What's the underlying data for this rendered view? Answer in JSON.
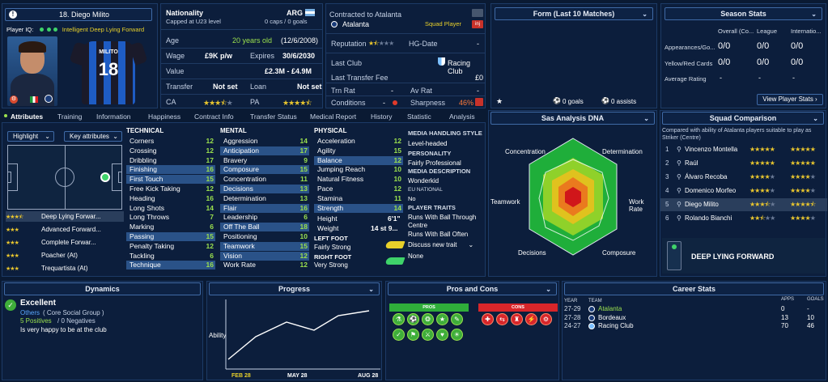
{
  "player": {
    "number_name": "18. Diego Milito",
    "player_iq_label": "Player IQ:",
    "role": "Intelligent Deep Lying Forward",
    "shirt_name": "MILITO",
    "shirt_number": "18"
  },
  "info": {
    "nationality_label": "Nationality",
    "nationality_value": "ARG",
    "capped": "Capped at U23 level",
    "caps": "0 caps / 0 goals",
    "age_label": "Age",
    "age_value": "20 years old",
    "dob": "(12/6/2008)",
    "wage_label": "Wage",
    "wage_value": "£9K p/w",
    "expires_label": "Expires",
    "expires_value": "30/6/2030",
    "value_label": "Value",
    "value_value": "£2.3M - £4.9M",
    "transfer_label": "Transfer",
    "transfer_value": "Not set",
    "loan_label": "Loan",
    "loan_value": "Not set",
    "ca_label": "CA",
    "pa_label": "PA",
    "ca_stars": 3.5,
    "pa_stars": 4.5
  },
  "contract": {
    "contracted_to": "Contracted to Atalanta",
    "club": "Atalanta",
    "status": "Squad Player",
    "reputation_label": "Reputation",
    "hg_label": "HG-Date",
    "hg_value": "-",
    "last_club_label": "Last Club",
    "last_club_value": "Racing Club",
    "last_fee_label": "Last Transfer Fee",
    "last_fee_value": "£0",
    "trn_rat_label": "Trn Rat",
    "trn_rat_value": "-",
    "av_rat_label": "Av Rat",
    "av_rat_value": "-",
    "conditions_label": "Conditions",
    "conditions_value": "-",
    "sharpness_label": "Sharpness",
    "sharpness_value": "46%",
    "rep_stars": 1.5
  },
  "form": {
    "title": "Form (Last 10 Matches)",
    "goals": "0 goals",
    "assists": "0 assists"
  },
  "season": {
    "title": "Season Stats",
    "columns": [
      "Overall (Co...",
      "League",
      "Internatio..."
    ],
    "rows": [
      {
        "label": "Appearances/Go...",
        "values": [
          "0/0",
          "0/0",
          "0/0"
        ]
      },
      {
        "label": "Yellow/Red Cards",
        "values": [
          "0/0",
          "0/0",
          "0/0"
        ]
      },
      {
        "label": "Average Rating",
        "values": [
          "-",
          "-",
          "-"
        ]
      }
    ],
    "button": "View Player Stats"
  },
  "tabs": [
    "Attributes",
    "Training",
    "Information",
    "Happiness",
    "Contract Info",
    "Transfer Status",
    "Medical Report",
    "History",
    "Statistic",
    "Analysis"
  ],
  "attributes": {
    "highlight": "Highlight",
    "key_attributes": "Key attributes",
    "technical_title": "TECHNICAL",
    "technical": [
      {
        "name": "Corners",
        "value": "12",
        "hl": false
      },
      {
        "name": "Crossing",
        "value": "12",
        "hl": false
      },
      {
        "name": "Dribbling",
        "value": "17",
        "hl": false
      },
      {
        "name": "Finishing",
        "value": "16",
        "hl": true
      },
      {
        "name": "First Touch",
        "value": "15",
        "hl": true
      },
      {
        "name": "Free Kick Taking",
        "value": "12",
        "hl": false
      },
      {
        "name": "Heading",
        "value": "16",
        "hl": false
      },
      {
        "name": "Long Shots",
        "value": "14",
        "hl": false
      },
      {
        "name": "Long Throws",
        "value": "7",
        "hl": false
      },
      {
        "name": "Marking",
        "value": "6",
        "hl": false
      },
      {
        "name": "Passing",
        "value": "15",
        "hl": true
      },
      {
        "name": "Penalty Taking",
        "value": "12",
        "hl": false
      },
      {
        "name": "Tackling",
        "value": "6",
        "hl": false
      },
      {
        "name": "Technique",
        "value": "16",
        "hl": true
      }
    ],
    "mental_title": "MENTAL",
    "mental": [
      {
        "name": "Aggression",
        "value": "14",
        "hl": false
      },
      {
        "name": "Anticipation",
        "value": "17",
        "hl": true
      },
      {
        "name": "Bravery",
        "value": "9",
        "hl": false
      },
      {
        "name": "Composure",
        "value": "15",
        "hl": true
      },
      {
        "name": "Concentration",
        "value": "11",
        "hl": false
      },
      {
        "name": "Decisions",
        "value": "13",
        "hl": true
      },
      {
        "name": "Determination",
        "value": "13",
        "hl": false
      },
      {
        "name": "Flair",
        "value": "16",
        "hl": true
      },
      {
        "name": "Leadership",
        "value": "6",
        "hl": false
      },
      {
        "name": "Off The Ball",
        "value": "18",
        "hl": true
      },
      {
        "name": "Positioning",
        "value": "10",
        "hl": false
      },
      {
        "name": "Teamwork",
        "value": "15",
        "hl": true
      },
      {
        "name": "Vision",
        "value": "12",
        "hl": true
      },
      {
        "name": "Work Rate",
        "value": "12",
        "hl": false
      }
    ],
    "physical_title": "PHYSICAL",
    "physical": [
      {
        "name": "Acceleration",
        "value": "12",
        "hl": false
      },
      {
        "name": "Agility",
        "value": "15",
        "hl": false
      },
      {
        "name": "Balance",
        "value": "12",
        "hl": true
      },
      {
        "name": "Jumping Reach",
        "value": "10",
        "hl": false
      },
      {
        "name": "Natural Fitness",
        "value": "10",
        "hl": false
      },
      {
        "name": "Pace",
        "value": "12",
        "hl": false
      },
      {
        "name": "Stamina",
        "value": "11",
        "hl": false
      },
      {
        "name": "Strength",
        "value": "14",
        "hl": true
      }
    ],
    "height_label": "Height",
    "height_value": "6'1\"",
    "weight_label": "Weight",
    "weight_value": "14 st 9...",
    "left_foot_label": "LEFT FOOT",
    "left_foot_value": "Fairly Strong",
    "right_foot_label": "RIGHT FOOT",
    "right_foot_value": "Very Strong"
  },
  "media": {
    "handling_title": "MEDIA HANDLING STYLE",
    "handling_value": "Level-headed",
    "personality_title": "PERSONALITY",
    "personality_value": "Fairly Professional",
    "description_title": "MEDIA DESCRIPTION",
    "description_value": "Wonderkid",
    "eu_title": "EU NATIONAL",
    "eu_value": "No",
    "traits_title": "PLAYER TRAITS",
    "traits": [
      "Runs With Ball Through Centre",
      "Runs With Ball Often",
      "Discuss new trait",
      "None"
    ]
  },
  "roles": [
    {
      "stars": 3.5,
      "name": "Deep Lying Forwar...",
      "active": true
    },
    {
      "stars": 3,
      "name": "Advanced Forward...",
      "active": false
    },
    {
      "stars": 3,
      "name": "Complete Forwar...",
      "active": false
    },
    {
      "stars": 3,
      "name": "Poacher (At)",
      "active": false
    },
    {
      "stars": 3,
      "name": "Trequartista (At)",
      "active": false
    }
  ],
  "dna": {
    "title": "Sas Analysis DNA",
    "labels": {
      "top_left": "Concentration",
      "top_right": "Determination",
      "left": "Teamwork",
      "right": "Work Rate",
      "bottom_left": "Decisions",
      "bottom_right": "Composure"
    }
  },
  "squad": {
    "title": "Squad Comparison",
    "subtitle": "Compared with ability of Atalanta players suitable to play as Striker (Centre)",
    "players": [
      {
        "rank": "1",
        "name": "Vincenzo Montella",
        "ca": 5,
        "pa": 5
      },
      {
        "rank": "2",
        "name": "Raúl",
        "ca": 5,
        "pa": 5
      },
      {
        "rank": "3",
        "name": "Álvaro Recoba",
        "ca": 4,
        "pa": 4
      },
      {
        "rank": "4",
        "name": "Domenico Morfeo",
        "ca": 4,
        "pa": 4
      },
      {
        "rank": "5",
        "name": "Diego Milito",
        "ca": 3.5,
        "pa": 4.5
      },
      {
        "rank": "6",
        "name": "Rolando Bianchi",
        "ca": 2.5,
        "pa": 4
      }
    ],
    "role_name": "DEEP LYING FORWARD"
  },
  "dynamics": {
    "title": "Dynamics",
    "status": "Excellent",
    "group_prefix": "Others",
    "group": "( Core Social Group )",
    "positives": "5 Positives",
    "negatives": "/ 0 Negatives",
    "note": "Is very happy to be at the club"
  },
  "progress": {
    "title": "Progress",
    "ylabel": "Ability",
    "ticks": [
      "FEB 28",
      "MAY 28",
      "AUG 28"
    ]
  },
  "pros_cons": {
    "title": "Pros and Cons",
    "pros_label": "PROS",
    "cons_label": "CONS"
  },
  "career": {
    "title": "Career Stats",
    "headers": [
      "YEAR",
      "TEAM",
      "APPS",
      "GOALS"
    ],
    "rows": [
      {
        "year": "27-29",
        "team": "Atalanta",
        "apps": "0",
        "goals": "-"
      },
      {
        "year": "27-28",
        "team": "Bordeaux",
        "apps": "13",
        "goals": "10"
      },
      {
        "year": "24-27",
        "team": "Racing Club",
        "apps": "70",
        "goals": "46"
      }
    ]
  },
  "colors": {
    "background": "#0a1a33",
    "panel": "#0c1e3c",
    "accent_green": "#9be14e",
    "accent_yellow": "#e8d02a",
    "highlight_row": "#2a5288"
  }
}
